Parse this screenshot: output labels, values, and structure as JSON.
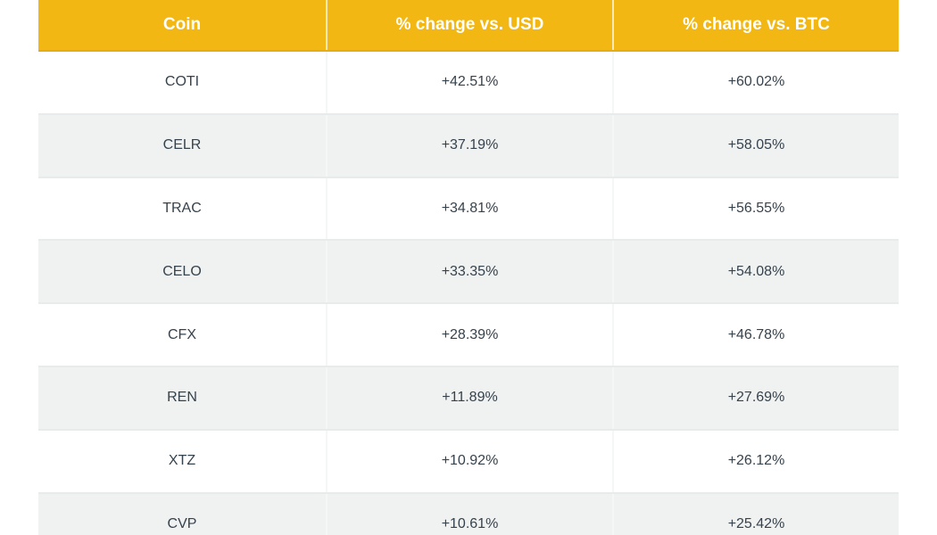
{
  "table": {
    "columns": [
      "Coin",
      "% change vs. USD",
      "% change vs. BTC"
    ],
    "rows": [
      {
        "coin": "COTI",
        "usd": "+42.51%",
        "btc": "+60.02%"
      },
      {
        "coin": "CELR",
        "usd": "+37.19%",
        "btc": "+58.05%"
      },
      {
        "coin": "TRAC",
        "usd": "+34.81%",
        "btc": "+56.55%"
      },
      {
        "coin": "CELO",
        "usd": "+33.35%",
        "btc": "+54.08%"
      },
      {
        "coin": "CFX",
        "usd": "+28.39%",
        "btc": "+46.78%"
      },
      {
        "coin": "REN",
        "usd": "+11.89%",
        "btc": "+27.69%"
      },
      {
        "coin": "XTZ",
        "usd": "+10.92%",
        "btc": "+26.12%"
      },
      {
        "coin": "CVP",
        "usd": "+10.61%",
        "btc": "+25.42%"
      }
    ]
  },
  "colors": {
    "header_bg": "#F2B713",
    "header_border": "#E6AC13",
    "header_text": "#FFFFFF",
    "body_text": "#36424C",
    "alt_row_bg": "#F0F2F2",
    "row_separator": "#E7EBEC"
  },
  "chart_data": {
    "type": "table",
    "title": "",
    "columns": [
      "Coin",
      "% change vs. USD",
      "% change vs. BTC"
    ],
    "rows": [
      [
        "COTI",
        "+42.51%",
        "+60.02%"
      ],
      [
        "CELR",
        "+37.19%",
        "+58.05%"
      ],
      [
        "TRAC",
        "+34.81%",
        "+56.55%"
      ],
      [
        "CELO",
        "+33.35%",
        "+54.08%"
      ],
      [
        "CFX",
        "+28.39%",
        "+46.78%"
      ],
      [
        "REN",
        "+11.89%",
        "+27.69%"
      ],
      [
        "XTZ",
        "+10.92%",
        "+26.12%"
      ],
      [
        "CVP",
        "+10.61%",
        "+25.42%"
      ]
    ],
    "series": [
      {
        "name": "% change vs. USD",
        "values": [
          42.51,
          37.19,
          34.81,
          33.35,
          28.39,
          11.89,
          10.92,
          10.61
        ]
      },
      {
        "name": "% change vs. BTC",
        "values": [
          60.02,
          58.05,
          56.55,
          54.08,
          46.78,
          27.69,
          26.12,
          25.42
        ]
      }
    ],
    "categories": [
      "COTI",
      "CELR",
      "TRAC",
      "CELO",
      "CFX",
      "REN",
      "XTZ",
      "CVP"
    ]
  }
}
